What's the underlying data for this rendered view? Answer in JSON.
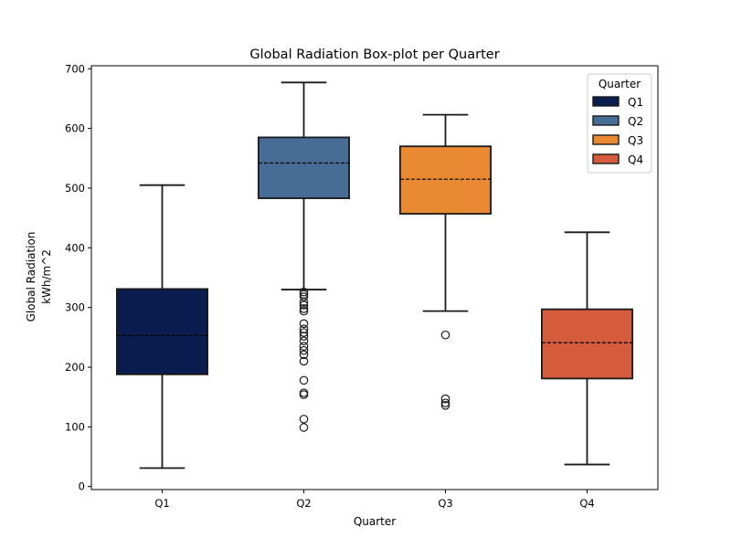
{
  "chart_data": {
    "type": "box",
    "title": "Global Radiation Box-plot per Quarter",
    "xlabel": "Quarter",
    "ylabel_lines": [
      "Global Radiation",
      "kWh/m^2"
    ],
    "ylim": [
      -5,
      705
    ],
    "yticks": [
      0,
      100,
      200,
      300,
      400,
      500,
      600,
      700
    ],
    "legend": {
      "title": "Quarter",
      "position": "top-right"
    },
    "median_line_style": "dashed",
    "categories": [
      "Q1",
      "Q2",
      "Q3",
      "Q4"
    ],
    "series": [
      {
        "name": "Q1",
        "color": "#0b1d4f",
        "whisker_low": 31,
        "q1": 188,
        "median": 253,
        "q3": 331,
        "whisker_high": 505,
        "outliers": []
      },
      {
        "name": "Q2",
        "color": "#476c95",
        "whisker_low": 330,
        "q1": 483,
        "median": 542,
        "q3": 585,
        "whisker_high": 677,
        "outliers": [
          326,
          322,
          318,
          309,
          304,
          298,
          294,
          273,
          264,
          258,
          252,
          244,
          235,
          228,
          221,
          210,
          178,
          157,
          154,
          113,
          99
        ]
      },
      {
        "name": "Q3",
        "color": "#e98a33",
        "whisker_low": 294,
        "q1": 457,
        "median": 515,
        "q3": 570,
        "whisker_high": 623,
        "outliers": [
          254,
          147,
          140,
          136
        ]
      },
      {
        "name": "Q4",
        "color": "#d55b3d",
        "whisker_low": 37,
        "q1": 181,
        "median": 241,
        "q3": 297,
        "whisker_high": 426,
        "outliers": []
      }
    ]
  }
}
